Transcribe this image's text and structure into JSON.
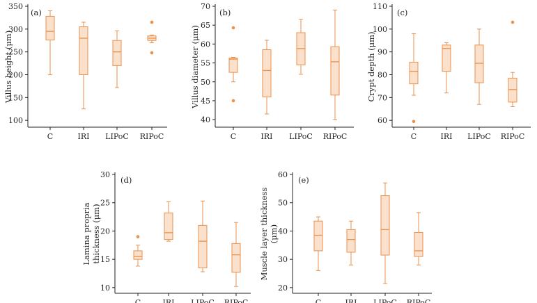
{
  "colors": {
    "box_fill": "#fbe1cc",
    "box_stroke": "#e8924d",
    "outlier": "#e8924d",
    "axis": "#231f20"
  },
  "chart_data": [
    {
      "type": "box",
      "panel_label": "(a)",
      "ylabel": "Villus height (μm)",
      "categories": [
        "C",
        "IRI",
        "LIPoC",
        "RIPoC"
      ],
      "ylim": [
        85,
        350
      ],
      "yticks": [
        100,
        150,
        200,
        250,
        300,
        350
      ],
      "boxes": [
        {
          "category": "C",
          "whisker_low": 200,
          "q1": 276,
          "median": 295,
          "q3": 328,
          "whisker_high": 340,
          "outliers": []
        },
        {
          "category": "IRI",
          "whisker_low": 125,
          "q1": 200,
          "median": 280,
          "q3": 305,
          "whisker_high": 315,
          "outliers": []
        },
        {
          "category": "LIPoC",
          "whisker_low": 172,
          "q1": 220,
          "median": 250,
          "q3": 275,
          "whisker_high": 296,
          "outliers": []
        },
        {
          "category": "RIPoC",
          "whisker_low": 270,
          "q1": 275,
          "median": 280,
          "q3": 285,
          "whisker_high": 287,
          "outliers": [
            248,
            315
          ]
        }
      ]
    },
    {
      "type": "box",
      "panel_label": "(b)",
      "ylabel": "Villus diameter (μm)",
      "categories": [
        "C",
        "IRI",
        "LIPoC",
        "RIPoC"
      ],
      "ylim": [
        38,
        70
      ],
      "yticks": [
        40,
        45,
        50,
        55,
        60,
        65,
        70
      ],
      "boxes": [
        {
          "category": "C",
          "whisker_low": 50,
          "q1": 52.5,
          "median": 56,
          "q3": 56.3,
          "whisker_high": 56.5,
          "outliers": [
            45,
            64.3
          ]
        },
        {
          "category": "IRI",
          "whisker_low": 41.5,
          "q1": 46,
          "median": 53,
          "q3": 58.5,
          "whisker_high": 61,
          "outliers": []
        },
        {
          "category": "LIPoC",
          "whisker_low": 52,
          "q1": 54.5,
          "median": 58.8,
          "q3": 63,
          "whisker_high": 66.5,
          "outliers": []
        },
        {
          "category": "RIPoC",
          "whisker_low": 40,
          "q1": 46.5,
          "median": 55.3,
          "q3": 59.3,
          "whisker_high": 69,
          "outliers": []
        }
      ]
    },
    {
      "type": "box",
      "panel_label": "(c)",
      "ylabel": "Crypt depth (μm)",
      "categories": [
        "C",
        "IRI",
        "LIPoC",
        "RIPoC"
      ],
      "ylim": [
        57,
        110
      ],
      "yticks": [
        60,
        70,
        80,
        90,
        100,
        110
      ],
      "boxes": [
        {
          "category": "C",
          "whisker_low": 71,
          "q1": 76,
          "median": 81.5,
          "q3": 85.5,
          "whisker_high": 98,
          "outliers": [
            59.5
          ]
        },
        {
          "category": "IRI",
          "whisker_low": 72,
          "q1": 81.5,
          "median": 91.5,
          "q3": 93,
          "whisker_high": 94,
          "outliers": []
        },
        {
          "category": "LIPoC",
          "whisker_low": 67,
          "q1": 76.5,
          "median": 85,
          "q3": 93,
          "whisker_high": 100,
          "outliers": []
        },
        {
          "category": "RIPoC",
          "whisker_low": 66,
          "q1": 68,
          "median": 73.5,
          "q3": 78.5,
          "whisker_high": 81,
          "outliers": [
            103
          ]
        }
      ]
    },
    {
      "type": "box",
      "panel_label": "(d)",
      "ylabel_lines": [
        "Lamina propria",
        "thickness (μm)"
      ],
      "categories": [
        "C",
        "IRI",
        "LIPoC",
        "RIPoC"
      ],
      "ylim": [
        9,
        30
      ],
      "yticks": [
        10,
        15,
        20,
        25,
        30
      ],
      "boxes": [
        {
          "category": "C",
          "whisker_low": 13.8,
          "q1": 15,
          "median": 15.5,
          "q3": 16.5,
          "whisker_high": 17.5,
          "outliers": [
            19
          ]
        },
        {
          "category": "IRI",
          "whisker_low": 18.2,
          "q1": 18.5,
          "median": 19.7,
          "q3": 23.2,
          "whisker_high": 25.2,
          "outliers": []
        },
        {
          "category": "LIPoC",
          "whisker_low": 12.8,
          "q1": 13.5,
          "median": 18.2,
          "q3": 21,
          "whisker_high": 25.3,
          "outliers": []
        },
        {
          "category": "RIPoC",
          "whisker_low": 10.2,
          "q1": 12.7,
          "median": 15.8,
          "q3": 17.8,
          "whisker_high": 21.5,
          "outliers": []
        }
      ]
    },
    {
      "type": "box",
      "panel_label": "(e)",
      "ylabel_lines": [
        "Muscle layer thickness",
        "(μm)"
      ],
      "categories": [
        "C",
        "IRI",
        "LIPoC",
        "RIPoC"
      ],
      "ylim": [
        18,
        60
      ],
      "yticks": [
        20,
        30,
        40,
        50,
        60
      ],
      "boxes": [
        {
          "category": "C",
          "whisker_low": 26,
          "q1": 33,
          "median": 38.5,
          "q3": 43.5,
          "whisker_high": 45,
          "outliers": []
        },
        {
          "category": "IRI",
          "whisker_low": 28,
          "q1": 32.5,
          "median": 37,
          "q3": 40.5,
          "whisker_high": 43.5,
          "outliers": []
        },
        {
          "category": "LIPoC",
          "whisker_low": 21.5,
          "q1": 31.5,
          "median": 40.5,
          "q3": 52.5,
          "whisker_high": 57,
          "outliers": []
        },
        {
          "category": "RIPoC",
          "whisker_low": 28,
          "q1": 31,
          "median": 33,
          "q3": 39.5,
          "whisker_high": 46.5,
          "outliers": []
        }
      ]
    }
  ]
}
